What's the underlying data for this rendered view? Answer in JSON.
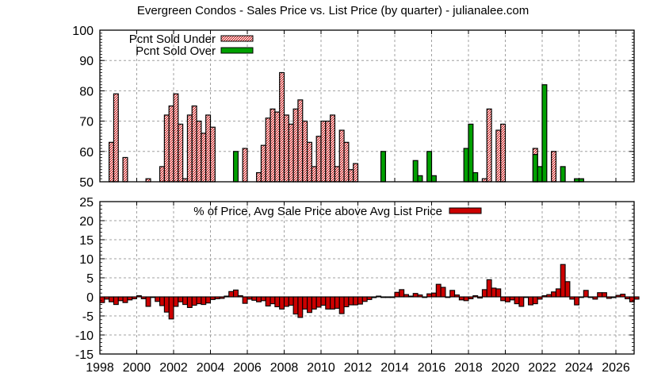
{
  "title": "Evergreen Condos - Sales Price vs. List Price (by quarter) - julianalee.com",
  "colors": {
    "under_fill": "#f4c8c8",
    "under_pattern": "#c00000",
    "over_fill": "#00a000",
    "diff_fill": "#cc0000",
    "grid": "#a0a0a0",
    "border": "#000000"
  },
  "chart_data": [
    {
      "type": "bar",
      "title": "Evergreen Condos - Sales Price vs. List Price (by quarter) - julianalee.com",
      "xlabel": "",
      "ylabel": "",
      "ylim": [
        50,
        100
      ],
      "yticks": [
        50,
        60,
        70,
        80,
        90,
        100
      ],
      "xlim": [
        1998,
        2027
      ],
      "grid": true,
      "legend_position": "top-left",
      "x_start": "1998Q1",
      "x_step": "quarter",
      "series": [
        {
          "name": "Pcnt Sold Under",
          "style": "pattern-red",
          "values": [
            null,
            null,
            63,
            79,
            null,
            58,
            null,
            null,
            null,
            null,
            51,
            null,
            null,
            55,
            72,
            75,
            79,
            69,
            51,
            72,
            75,
            70,
            66,
            72,
            68,
            null,
            null,
            null,
            null,
            null,
            null,
            61,
            null,
            null,
            53,
            62,
            71,
            74,
            73,
            86,
            72,
            69,
            74,
            77,
            70,
            63,
            55,
            65,
            70,
            70,
            72,
            55,
            67,
            63,
            54,
            56,
            null,
            null,
            null,
            null,
            null,
            null,
            null,
            null,
            null,
            null,
            null,
            null,
            null,
            null,
            null,
            null,
            null,
            null,
            null,
            null,
            null,
            null,
            null,
            null,
            null,
            null,
            null,
            51,
            74,
            null,
            67,
            69,
            null,
            null,
            null,
            null,
            null,
            null,
            61,
            null,
            null,
            null,
            60,
            null,
            null,
            null,
            null,
            null,
            null,
            null,
            null,
            null,
            null
          ]
        },
        {
          "name": "Pcnt Sold Over",
          "style": "solid-green",
          "values": [
            null,
            null,
            null,
            null,
            null,
            null,
            null,
            null,
            null,
            null,
            null,
            null,
            null,
            null,
            null,
            null,
            null,
            null,
            null,
            null,
            null,
            null,
            null,
            null,
            null,
            null,
            null,
            null,
            null,
            60,
            null,
            null,
            null,
            null,
            null,
            null,
            null,
            null,
            null,
            null,
            null,
            null,
            null,
            null,
            null,
            null,
            null,
            null,
            null,
            null,
            null,
            null,
            null,
            null,
            null,
            null,
            null,
            null,
            null,
            null,
            null,
            60,
            null,
            null,
            null,
            null,
            null,
            null,
            57,
            52,
            null,
            60,
            52,
            null,
            null,
            null,
            null,
            null,
            null,
            61,
            69,
            53,
            null,
            null,
            null,
            null,
            null,
            null,
            null,
            null,
            null,
            null,
            null,
            null,
            59,
            55,
            82,
            null,
            null,
            null,
            55,
            null,
            null,
            51,
            51,
            null,
            null,
            null,
            null,
            null,
            null,
            null,
            null
          ]
        }
      ]
    },
    {
      "type": "bar",
      "title": "% of Price, Avg Sale Price above Avg List Price",
      "ylim": [
        -15,
        25
      ],
      "yticks": [
        -15,
        -10,
        -5,
        0,
        5,
        10,
        15,
        20,
        25
      ],
      "xticks": [
        1998,
        2000,
        2002,
        2004,
        2006,
        2008,
        2010,
        2012,
        2014,
        2016,
        2018,
        2020,
        2022,
        2024,
        2026
      ],
      "xlim": [
        1998,
        2027
      ],
      "grid": true,
      "legend_position": "top-center",
      "x_start": "1998Q1",
      "x_step": "quarter",
      "series": [
        {
          "name": "% of Price, Avg Sale Price above Avg List Price",
          "values": [
            -1.5,
            -0.6,
            -1.3,
            -2.0,
            -1.0,
            -1.5,
            -0.8,
            -0.5,
            0.3,
            -0.5,
            -2.5,
            0,
            -1.2,
            -2.3,
            -4.0,
            -5.8,
            -2.5,
            -1.3,
            -2.0,
            -2.8,
            -2.2,
            -1.8,
            -2.0,
            -1.6,
            -0.7,
            -0.5,
            -0.4,
            0.2,
            1.4,
            1.8,
            0.3,
            -1.7,
            -0.6,
            -0.9,
            -1.3,
            -1.0,
            -2.4,
            -1.8,
            -2.6,
            -3.2,
            -2.5,
            -2.2,
            -4.5,
            -5.4,
            -3.2,
            -4.1,
            -3.2,
            -2.7,
            -2.2,
            -3.2,
            -3.2,
            -3.0,
            -4.4,
            -2.6,
            -2.1,
            -2.1,
            -1.9,
            -1.2,
            -0.7,
            -0.2,
            0.2,
            -0.1,
            0,
            0,
            1.2,
            1.9,
            0.6,
            0.2,
            0.9,
            0.5,
            0,
            0.8,
            1.0,
            3.3,
            2.5,
            0,
            1.7,
            0.5,
            -0.8,
            -1.0,
            -0.5,
            0.3,
            -0.3,
            1.9,
            4.5,
            2.3,
            2.1,
            -1.0,
            -1.3,
            -0.8,
            -1.8,
            -2.5,
            0,
            -2.1,
            -1.8,
            -0.6,
            0.3,
            0.6,
            1.3,
            2.1,
            8.5,
            4.0,
            -0.6,
            -2.1,
            0,
            1.7,
            0,
            -0.6,
            1.1,
            1.1,
            -0.4,
            -0.2,
            0.4,
            0.7,
            -0.5,
            -1.3,
            -0.6
          ]
        }
      ]
    }
  ],
  "legend": {
    "under": "Pcnt Sold Under",
    "over": "Pcnt Sold Over",
    "diff": "% of Price, Avg Sale Price above Avg List Price"
  }
}
